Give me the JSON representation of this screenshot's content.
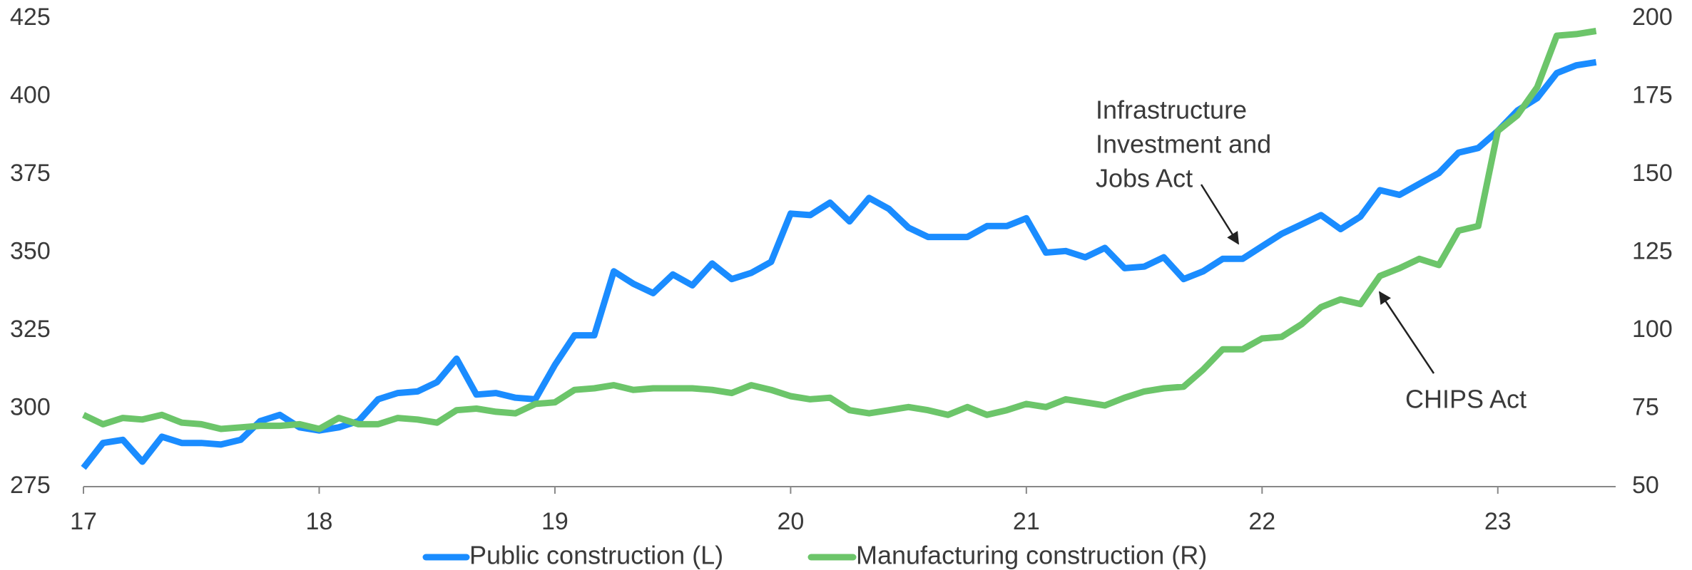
{
  "chart_data": {
    "type": "line",
    "x": [
      17,
      17.083,
      17.167,
      17.25,
      17.333,
      17.417,
      17.5,
      17.583,
      17.667,
      17.75,
      17.833,
      17.917,
      18,
      18.083,
      18.167,
      18.25,
      18.333,
      18.417,
      18.5,
      18.583,
      18.667,
      18.75,
      18.833,
      18.917,
      19,
      19.083,
      19.167,
      19.25,
      19.333,
      19.417,
      19.5,
      19.583,
      19.667,
      19.75,
      19.833,
      19.917,
      20,
      20.083,
      20.167,
      20.25,
      20.333,
      20.417,
      20.5,
      20.583,
      20.667,
      20.75,
      20.833,
      20.917,
      21,
      21.083,
      21.167,
      21.25,
      21.333,
      21.417,
      21.5,
      21.583,
      21.667,
      21.75,
      21.833,
      21.917,
      22,
      22.083,
      22.167,
      22.25,
      22.333,
      22.417,
      22.5,
      22.583,
      22.667,
      22.75,
      22.833,
      22.917,
      23,
      23.083,
      23.167,
      23.25,
      23.333,
      23.417
    ],
    "series": [
      {
        "name": "Public construction (L)",
        "color": "#1a8cff",
        "axis": "y",
        "values": [
          281,
          289,
          290,
          283,
          291,
          289,
          289,
          288.5,
          290,
          296,
          298,
          294,
          293,
          294,
          296,
          303,
          305,
          305.5,
          308.5,
          316,
          304.5,
          305,
          303.5,
          303,
          314,
          323.5,
          323.5,
          344,
          340,
          337,
          343,
          339.5,
          346.5,
          341.5,
          343.5,
          347,
          362.5,
          362,
          366,
          360,
          367.5,
          364,
          358,
          355,
          355,
          355,
          358.5,
          358.5,
          361,
          350,
          350.5,
          348.5,
          351.5,
          345,
          345.5,
          348.5,
          341.5,
          344,
          348,
          348,
          352,
          356,
          359,
          362,
          357.5,
          361.5,
          370,
          368.5,
          372,
          375.5,
          382,
          383.5,
          389,
          395.5,
          399.5,
          407.5,
          410,
          411
        ]
      },
      {
        "name": "Manufacturing construction (R)",
        "color": "#6cc56a",
        "axis": "y2",
        "values": [
          73,
          70,
          72,
          71.5,
          73,
          70.5,
          70,
          68.5,
          69,
          69.5,
          69.5,
          70,
          68.5,
          72,
          70,
          70,
          72,
          71.5,
          70.5,
          74.5,
          75,
          74,
          73.5,
          76.5,
          77,
          81,
          81.5,
          82.5,
          81,
          81.5,
          81.5,
          81.5,
          81,
          80,
          82.5,
          81,
          79,
          78,
          78.5,
          74.5,
          73.5,
          74.5,
          75.5,
          74.5,
          73,
          75.5,
          73,
          74.5,
          76.5,
          75.5,
          78,
          77,
          76,
          78.5,
          80.5,
          81.5,
          82,
          87.5,
          94,
          94,
          97.5,
          98,
          102,
          107.5,
          110,
          108.5,
          117.5,
          120,
          123,
          121,
          132,
          133.5,
          164,
          169,
          178,
          194.5,
          195,
          196
        ]
      }
    ],
    "xlim": [
      17,
      23.5
    ],
    "xticks": [
      17,
      18,
      19,
      20,
      21,
      22,
      23
    ],
    "ylim": [
      275,
      425
    ],
    "yticks": [
      275,
      300,
      325,
      350,
      375,
      400,
      425
    ],
    "y2lim": [
      50,
      200
    ],
    "y2ticks": [
      50,
      75,
      100,
      125,
      150,
      175,
      200
    ],
    "annotations": [
      {
        "lines": [
          "Infrastructure",
          "Investment and",
          "Jobs Act"
        ]
      },
      {
        "lines": [
          "CHIPS Act"
        ]
      }
    ]
  }
}
